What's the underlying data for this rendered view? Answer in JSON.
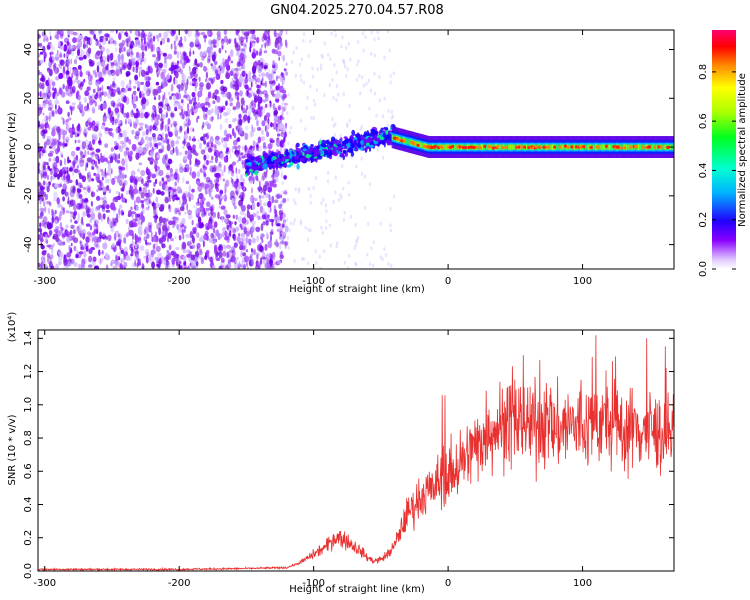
{
  "title": "GN04.2025.270.04.57.R08",
  "colors": {
    "snr_line": "#e8302f",
    "axis": "#000000",
    "spectrogram_bg": "#ffffff"
  },
  "chart_data": [
    {
      "type": "heatmap",
      "name": "spectrogram",
      "xlabel": "Height of straight line (km)",
      "ylabel": "Frequency (Hz)",
      "xlim": [
        -305,
        168
      ],
      "ylim": [
        -50,
        48
      ],
      "xticks": [
        -300,
        -200,
        -100,
        0,
        100
      ],
      "yticks": [
        -40,
        -20,
        0,
        20,
        40
      ],
      "colorbar": {
        "label": "Normalized spectral amplitude",
        "range": [
          0.0,
          0.97
        ],
        "ticks": [
          "0.0",
          "0.2",
          "0.4",
          "0.6",
          "0.8"
        ],
        "colormap": [
          "#ffffff",
          "#c8a8ff",
          "#7a00ff",
          "#0000ff",
          "#00c8ff",
          "#00ff70",
          "#b4ff00",
          "#ffff00",
          "#ff8000",
          "#ff0000",
          "#ff0066"
        ]
      },
      "features": [
        {
          "region": "noise",
          "x_range": [
            -305,
            -120
          ],
          "freq_range": [
            -50,
            48
          ],
          "amplitude": "low (0.02-0.12)"
        },
        {
          "region": "signal_onset",
          "x_range": [
            -150,
            -40
          ],
          "center_freq": [
            -8,
            5
          ],
          "amplitude": "0.1-0.35"
        },
        {
          "region": "carrier",
          "x_range": [
            -40,
            168
          ],
          "center_freq": 0,
          "amplitude": "0.5-0.97"
        }
      ]
    },
    {
      "type": "line",
      "name": "snr",
      "xlabel": "Height of straight line (km)",
      "ylabel": "SNR (10 * v/v)",
      "y_scale_label": "(x10⁴)",
      "xlim": [
        -305,
        168
      ],
      "ylim": [
        0,
        1.45
      ],
      "xticks": [
        -300,
        -200,
        -100,
        0,
        100
      ],
      "yticks": [
        "0.0",
        "0.2",
        "0.4",
        "0.6",
        "0.8",
        "1.0",
        "1.2",
        "1.4"
      ],
      "series": [
        {
          "name": "SNR",
          "x": [
            -305,
            -250,
            -200,
            -150,
            -120,
            -110,
            -100,
            -90,
            -85,
            -80,
            -75,
            -70,
            -65,
            -60,
            -55,
            -50,
            -45,
            -40,
            -35,
            -30,
            -25,
            -20,
            -15,
            -10,
            -5,
            0,
            5,
            10,
            15,
            20,
            25,
            30,
            40,
            50,
            60,
            70,
            80,
            90,
            100,
            110,
            120,
            130,
            140,
            150,
            160,
            168
          ],
          "y": [
            0.01,
            0.01,
            0.01,
            0.015,
            0.02,
            0.05,
            0.1,
            0.15,
            0.2,
            0.2,
            0.18,
            0.15,
            0.12,
            0.08,
            0.06,
            0.07,
            0.1,
            0.15,
            0.25,
            0.35,
            0.4,
            0.45,
            0.48,
            0.5,
            0.55,
            0.58,
            0.6,
            0.65,
            0.7,
            0.75,
            0.8,
            0.85,
            0.88,
            0.9,
            0.88,
            0.9,
            0.85,
            0.88,
            0.85,
            0.9,
            0.88,
            0.85,
            0.86,
            0.85,
            0.82,
            0.8
          ]
        }
      ]
    }
  ]
}
